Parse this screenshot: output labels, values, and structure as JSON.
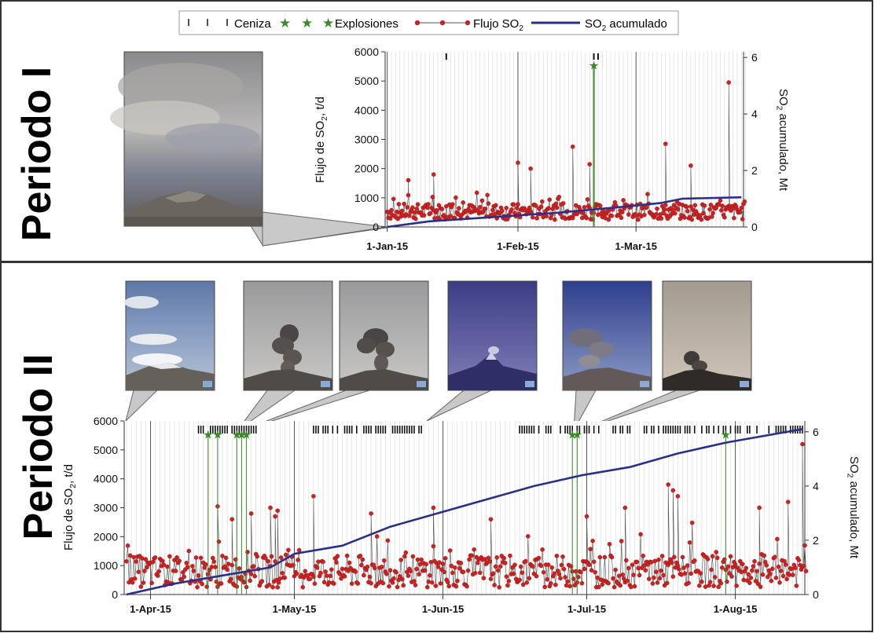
{
  "legend": {
    "items": [
      {
        "key": "ceniza",
        "label": "Ceniza"
      },
      {
        "key": "explosiones",
        "label": "Explosiones"
      },
      {
        "key": "flujo",
        "label": "Flujo SO",
        "sub": "2"
      },
      {
        "key": "acumulado",
        "label": "SO",
        "sub": "2",
        "label_tail": " acumulado"
      }
    ]
  },
  "colors": {
    "flux": "#cc2222",
    "flux_line": "#555555",
    "cumulative": "#2a2f8a",
    "explosion": "#3a8a2a",
    "ash": "#111111",
    "grid_minor": "#d8d8d8",
    "grid_major": "#555555",
    "panel_border": "#333333"
  },
  "panels": [
    {
      "title": "Periodo I",
      "photo_count": 1
    },
    {
      "title": "Periodo II",
      "photo_count": 6
    }
  ],
  "chart_data": [
    {
      "type": "scatter",
      "panel": "Periodo I",
      "x_start": "2015-01-01",
      "x_end": "2015-03-26",
      "xlim": [
        -0.5,
        84.5
      ],
      "xticks": [
        {
          "x": 0,
          "label": "1-Jan-15"
        },
        {
          "x": 31,
          "label": "1-Feb-15"
        },
        {
          "x": 59,
          "label": "1-Mar-15"
        }
      ],
      "ylabel": "Flujo de SO2, t/d",
      "ylim": [
        0,
        6000
      ],
      "yticks": [
        0,
        1000,
        2000,
        3000,
        4000,
        5000,
        6000
      ],
      "y2label": "SO2 acumulado, Mt",
      "y2lim": [
        0,
        6.2
      ],
      "y2ticks": [
        0,
        2,
        4,
        6
      ],
      "flux_peaks": [
        {
          "x": 5,
          "y": 1600
        },
        {
          "x": 11,
          "y": 1800
        },
        {
          "x": 31,
          "y": 2200
        },
        {
          "x": 34,
          "y": 2000
        },
        {
          "x": 44,
          "y": 2750
        },
        {
          "x": 48,
          "y": 2150
        },
        {
          "x": 66,
          "y": 2850
        },
        {
          "x": 72,
          "y": 2100
        },
        {
          "x": 81,
          "y": 4950
        }
      ],
      "explosions": [
        {
          "x": 49,
          "y": 5550
        }
      ],
      "ash": [
        14,
        49,
        50
      ],
      "cumulative": [
        {
          "x": 0,
          "y": 0.0
        },
        {
          "x": 10,
          "y": 0.2
        },
        {
          "x": 25,
          "y": 0.35
        },
        {
          "x": 40,
          "y": 0.5
        },
        {
          "x": 55,
          "y": 0.7
        },
        {
          "x": 65,
          "y": 0.85
        },
        {
          "x": 70,
          "y": 1.0
        },
        {
          "x": 84,
          "y": 1.05
        }
      ],
      "grid": true
    },
    {
      "type": "scatter",
      "panel": "Periodo II",
      "x_start": "2015-03-27",
      "x_end": "2015-08-15",
      "xlim": [
        -0.5,
        141.5
      ],
      "xticks": [
        {
          "x": 5,
          "label": "1-Apr-15"
        },
        {
          "x": 35,
          "label": "1-May-15"
        },
        {
          "x": 66,
          "label": "1-Jun-15"
        },
        {
          "x": 96,
          "label": "1-Jul-15"
        },
        {
          "x": 127,
          "label": "1-Aug-15"
        }
      ],
      "ylabel": "Flujo de SO2, t/d",
      "ylim": [
        0,
        6000
      ],
      "yticks": [
        0,
        1000,
        2000,
        3000,
        4000,
        5000,
        6000
      ],
      "y2label": "SO2 acumulado, Mt",
      "y2lim": [
        0,
        6.4
      ],
      "y2ticks": [
        0,
        2,
        4,
        6
      ],
      "flux_peaks": [
        {
          "x": 19,
          "y": 3050
        },
        {
          "x": 22,
          "y": 2600
        },
        {
          "x": 26,
          "y": 2800
        },
        {
          "x": 30,
          "y": 3000
        },
        {
          "x": 31,
          "y": 2700
        },
        {
          "x": 31.5,
          "y": 2900
        },
        {
          "x": 39,
          "y": 3400
        },
        {
          "x": 51,
          "y": 2800
        },
        {
          "x": 64,
          "y": 3000
        },
        {
          "x": 76,
          "y": 2600
        },
        {
          "x": 96,
          "y": 2700
        },
        {
          "x": 104,
          "y": 3000
        },
        {
          "x": 113,
          "y": 3800
        },
        {
          "x": 114,
          "y": 3600
        },
        {
          "x": 115,
          "y": 3400
        },
        {
          "x": 132,
          "y": 3000
        },
        {
          "x": 138,
          "y": 3200
        },
        {
          "x": 141,
          "y": 5200
        }
      ],
      "explosions": [
        {
          "x": 17,
          "y": 5550
        },
        {
          "x": 19,
          "y": 5550
        },
        {
          "x": 23,
          "y": 5550
        },
        {
          "x": 24,
          "y": 5550
        },
        {
          "x": 25,
          "y": 5550
        },
        {
          "x": 93,
          "y": 5550
        },
        {
          "x": 94,
          "y": 5550
        },
        {
          "x": 125,
          "y": 5550
        }
      ],
      "ash_bands": [
        [
          15,
          27
        ],
        [
          39,
          62
        ],
        [
          82,
          105
        ],
        [
          108,
          141
        ]
      ],
      "cumulative": [
        {
          "x": 0,
          "y": 0.0
        },
        {
          "x": 10,
          "y": 0.4
        },
        {
          "x": 20,
          "y": 0.7
        },
        {
          "x": 30,
          "y": 1.0
        },
        {
          "x": 35,
          "y": 1.5
        },
        {
          "x": 45,
          "y": 1.8
        },
        {
          "x": 55,
          "y": 2.5
        },
        {
          "x": 65,
          "y": 3.0
        },
        {
          "x": 75,
          "y": 3.5
        },
        {
          "x": 85,
          "y": 4.0
        },
        {
          "x": 95,
          "y": 4.4
        },
        {
          "x": 105,
          "y": 4.7
        },
        {
          "x": 115,
          "y": 5.2
        },
        {
          "x": 125,
          "y": 5.6
        },
        {
          "x": 141,
          "y": 6.1
        }
      ],
      "grid": true
    }
  ]
}
